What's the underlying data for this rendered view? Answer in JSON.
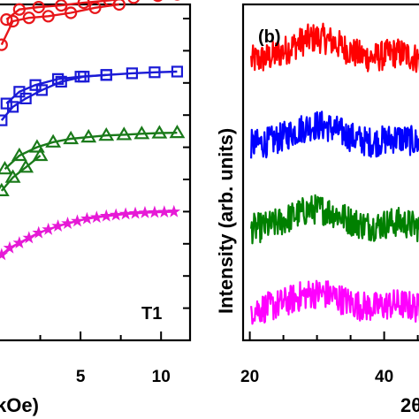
{
  "chart_data": [
    {
      "type": "line",
      "panel": "left",
      "annotation": "T1",
      "xlabel_visible": "kOe)",
      "x_ticks": [
        5,
        10
      ],
      "xlim": [
        0,
        11.8
      ],
      "ylim": [
        0,
        10
      ],
      "y_tick_count": 11,
      "series": [
        {
          "color": "#e8161a",
          "marker": "circle",
          "x": [
            0.4,
            1.2,
            2.4,
            3.8,
            5.2,
            6.8,
            8.3,
            9.8,
            11.0
          ],
          "y": [
            9.55,
            9.85,
            9.92,
            9.97,
            10.05,
            10.12,
            10.2,
            10.26,
            10.3
          ],
          "return_x": [
            0.1,
            0.8,
            1.8,
            3.0,
            4.4,
            5.9,
            7.4
          ],
          "return_y": [
            8.8,
            9.5,
            9.6,
            9.65,
            9.75,
            9.9,
            10.0
          ]
        },
        {
          "color": "#1a1ad6",
          "marker": "square",
          "x": [
            0.4,
            1.2,
            2.2,
            3.6,
            5.0,
            6.6,
            8.2,
            9.6,
            11.0
          ],
          "y": [
            7.05,
            7.4,
            7.6,
            7.78,
            7.85,
            7.9,
            7.95,
            7.98,
            8.0
          ],
          "return_x": [
            0.1,
            0.8,
            1.6,
            2.6,
            3.8,
            5.2,
            6.6
          ],
          "return_y": [
            6.55,
            6.95,
            7.2,
            7.45,
            7.7,
            7.85,
            7.9
          ]
        },
        {
          "color": "#1a7a1a",
          "marker": "triangle",
          "x": [
            0.3,
            1.2,
            2.3,
            3.3,
            4.4,
            5.5,
            6.6,
            7.7,
            8.8,
            9.9,
            11.0
          ],
          "y": [
            5.1,
            5.5,
            5.75,
            5.9,
            6.0,
            6.05,
            6.1,
            6.12,
            6.15,
            6.17,
            6.18
          ],
          "return_x": [
            0.1,
            0.8,
            1.6,
            2.5
          ],
          "return_y": [
            4.45,
            4.85,
            5.15,
            5.5
          ]
        },
        {
          "color": "#e61ad6",
          "marker": "star",
          "x": [
            0.1,
            0.6,
            1.2,
            1.8,
            2.4,
            3.0,
            3.6,
            4.2,
            4.8,
            5.4,
            6.0,
            6.6,
            7.2,
            7.8,
            8.4,
            9.0,
            9.6,
            10.2,
            10.8
          ],
          "y": [
            2.55,
            2.75,
            2.9,
            3.05,
            3.2,
            3.3,
            3.4,
            3.48,
            3.55,
            3.62,
            3.66,
            3.7,
            3.73,
            3.76,
            3.78,
            3.8,
            3.81,
            3.82,
            3.83
          ]
        }
      ]
    },
    {
      "type": "line",
      "panel": "right",
      "panel_label": "(b)",
      "ylabel": "Intensity (arb. units)",
      "xlabel_visible": "2θ",
      "x_ticks": [
        20,
        40
      ],
      "xlim": [
        19,
        46.5
      ],
      "series_colors": [
        "#ff0000",
        "#0000ff",
        "#008000",
        "#ff00ff"
      ],
      "series_baselines": [
        0.83,
        0.58,
        0.33,
        0.09
      ],
      "series_amplitudes": [
        0.07,
        0.06,
        0.06,
        0.05
      ],
      "noise_amplitude": 0.045,
      "hump_center": 30
    }
  ]
}
